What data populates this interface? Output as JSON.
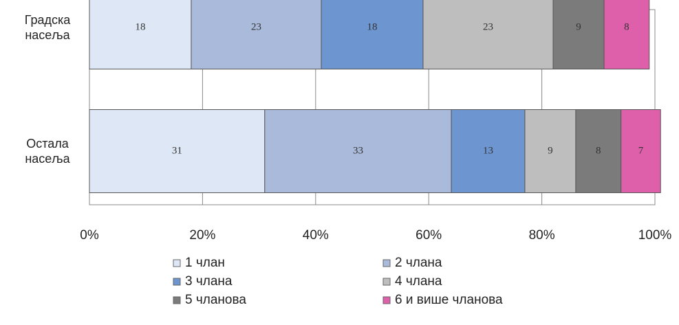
{
  "chart_data": {
    "type": "stacked-bar-horizontal",
    "categories": [
      "Градска насеља",
      "Остала насеља"
    ],
    "series": [
      {
        "name": "1 члан",
        "color": "#dde7f5",
        "values": [
          18,
          31
        ]
      },
      {
        "name": "2 члана",
        "color": "#a9badb",
        "values": [
          23,
          33
        ]
      },
      {
        "name": "3 члана",
        "color": "#6d96d0",
        "values": [
          18,
          13
        ]
      },
      {
        "name": "4 члана",
        "color": "#bebebe",
        "values": [
          23,
          9
        ]
      },
      {
        "name": "5 чланова",
        "color": "#7b7b7b",
        "values": [
          9,
          8
        ]
      },
      {
        "name": "6 и више чланова",
        "color": "#de60aa",
        "values": [
          8,
          7
        ]
      }
    ],
    "xlim": [
      0,
      100
    ],
    "xticks": [
      {
        "value": 0,
        "label": "0%"
      },
      {
        "value": 20,
        "label": "20%"
      },
      {
        "value": 40,
        "label": "40%"
      },
      {
        "value": 60,
        "label": "60%"
      },
      {
        "value": 80,
        "label": "80%"
      },
      {
        "value": 100,
        "label": "100%"
      }
    ],
    "grid": true
  }
}
